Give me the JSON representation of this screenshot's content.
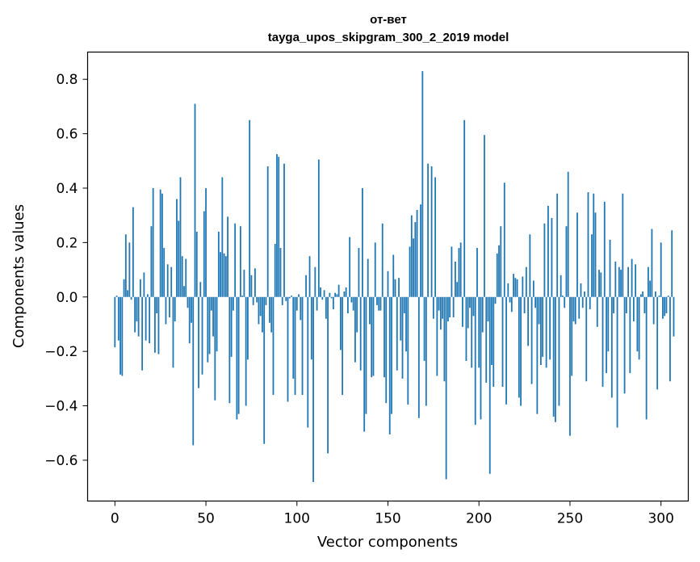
{
  "chart_data": {
    "type": "bar",
    "title_line1": "от-вет",
    "title_line2": "tayga_upos_skipgram_300_2_2019 model",
    "xlabel": "Vector components",
    "ylabel": "Components values",
    "xlim": [
      -15,
      315
    ],
    "ylim": [
      -0.75,
      0.9
    ],
    "xticks": [
      0,
      50,
      100,
      150,
      200,
      250,
      300
    ],
    "xtick_labels": [
      "0",
      "50",
      "100",
      "150",
      "200",
      "250",
      "300"
    ],
    "yticks": [
      -0.6,
      -0.4,
      -0.2,
      0.0,
      0.2,
      0.4,
      0.6,
      0.8
    ],
    "ytick_labels": [
      "−0.6",
      "−0.4",
      "−0.2",
      "0.0",
      "0.2",
      "0.4",
      "0.6",
      "0.8"
    ],
    "bar_color": "#1f77b4",
    "grid": false,
    "values": [
      -0.185,
      0.005,
      -0.16,
      -0.285,
      -0.29,
      0.065,
      0.23,
      0.025,
      0.2,
      -0.01,
      0.33,
      -0.13,
      -0.09,
      -0.145,
      0.065,
      -0.27,
      0.09,
      -0.16,
      0.01,
      -0.17,
      0.26,
      0.4,
      -0.205,
      -0.06,
      -0.21,
      0.395,
      0.38,
      0.18,
      -0.1,
      0.12,
      -0.075,
      0.11,
      -0.26,
      -0.09,
      0.36,
      0.28,
      0.44,
      0.15,
      0.04,
      0.14,
      -0.04,
      -0.17,
      -0.095,
      -0.545,
      0.71,
      0.24,
      -0.335,
      0.055,
      -0.285,
      0.315,
      0.4,
      -0.24,
      -0.21,
      -0.05,
      -0.145,
      -0.38,
      -0.2,
      0.24,
      0.165,
      0.44,
      0.16,
      0.15,
      0.295,
      -0.39,
      -0.22,
      -0.05,
      0.27,
      -0.45,
      -0.43,
      0.26,
      0.005,
      0.1,
      -0.4,
      -0.23,
      0.65,
      0.08,
      -0.03,
      0.105,
      -0.02,
      -0.1,
      -0.07,
      -0.13,
      -0.54,
      -0.03,
      0.48,
      -0.095,
      -0.13,
      -0.36,
      0.195,
      0.525,
      0.515,
      0.18,
      -0.03,
      0.49,
      -0.015,
      -0.385,
      -0.005,
      0.005,
      -0.3,
      -0.36,
      -0.05,
      0.01,
      -0.085,
      -0.36,
      0.0,
      0.08,
      -0.48,
      0.15,
      -0.23,
      -0.68,
      0.11,
      -0.05,
      0.505,
      0.035,
      -0.01,
      0.025,
      -0.08,
      -0.575,
      0.015,
      -0.005,
      -0.045,
      0.015,
      0.01,
      0.045,
      -0.195,
      -0.36,
      0.02,
      0.035,
      -0.06,
      0.22,
      -0.02,
      -0.05,
      -0.24,
      -0.13,
      0.18,
      -0.27,
      0.4,
      -0.495,
      -0.43,
      0.14,
      -0.1,
      -0.295,
      -0.29,
      0.2,
      -0.03,
      -0.05,
      -0.05,
      0.27,
      -0.295,
      -0.39,
      0.095,
      -0.505,
      -0.43,
      0.155,
      0.065,
      -0.27,
      0.07,
      -0.16,
      -0.3,
      -0.06,
      -0.2,
      -0.395,
      0.185,
      0.3,
      0.215,
      0.275,
      0.32,
      -0.445,
      0.34,
      0.83,
      -0.235,
      -0.4,
      0.49,
      0.0,
      0.48,
      -0.08,
      0.44,
      -0.29,
      -0.05,
      -0.12,
      -0.08,
      -0.31,
      -0.67,
      -0.09,
      -0.075,
      0.185,
      -0.075,
      0.13,
      0.055,
      0.18,
      0.2,
      -0.11,
      0.65,
      -0.235,
      -0.115,
      -0.04,
      -0.26,
      -0.07,
      -0.47,
      0.18,
      -0.26,
      -0.45,
      -0.13,
      0.595,
      -0.315,
      -0.09,
      -0.65,
      -0.25,
      -0.33,
      -0.025,
      0.16,
      0.19,
      0.26,
      -0.33,
      0.42,
      -0.395,
      0.05,
      -0.02,
      -0.055,
      0.085,
      0.07,
      0.065,
      -0.37,
      -0.4,
      0.075,
      -0.06,
      0.11,
      -0.18,
      0.23,
      -0.32,
      0.06,
      -0.04,
      -0.43,
      -0.1,
      -0.25,
      -0.22,
      0.27,
      -0.26,
      0.335,
      -0.23,
      0.29,
      -0.44,
      -0.46,
      0.38,
      -0.4,
      0.08,
      0.005,
      -0.04,
      0.26,
      0.46,
      -0.51,
      -0.29,
      -0.09,
      -0.1,
      0.31,
      -0.08,
      0.05,
      -0.04,
      0.02,
      -0.31,
      0.385,
      -0.045,
      0.23,
      0.38,
      0.31,
      -0.11,
      0.1,
      0.09,
      -0.33,
      0.35,
      -0.28,
      -0.2,
      0.21,
      -0.37,
      -0.06,
      0.13,
      -0.48,
      0.11,
      0.1,
      0.38,
      -0.355,
      -0.06,
      0.11,
      -0.28,
      0.14,
      -0.09,
      0.12,
      -0.2,
      -0.23,
      0.01,
      0.02,
      -0.06,
      -0.45,
      0.11,
      0.06,
      0.25,
      -0.1,
      0.02,
      -0.34,
      0.005,
      0.2,
      -0.08,
      -0.07,
      -0.06,
      0.005,
      -0.31,
      0.245,
      -0.145
    ]
  }
}
